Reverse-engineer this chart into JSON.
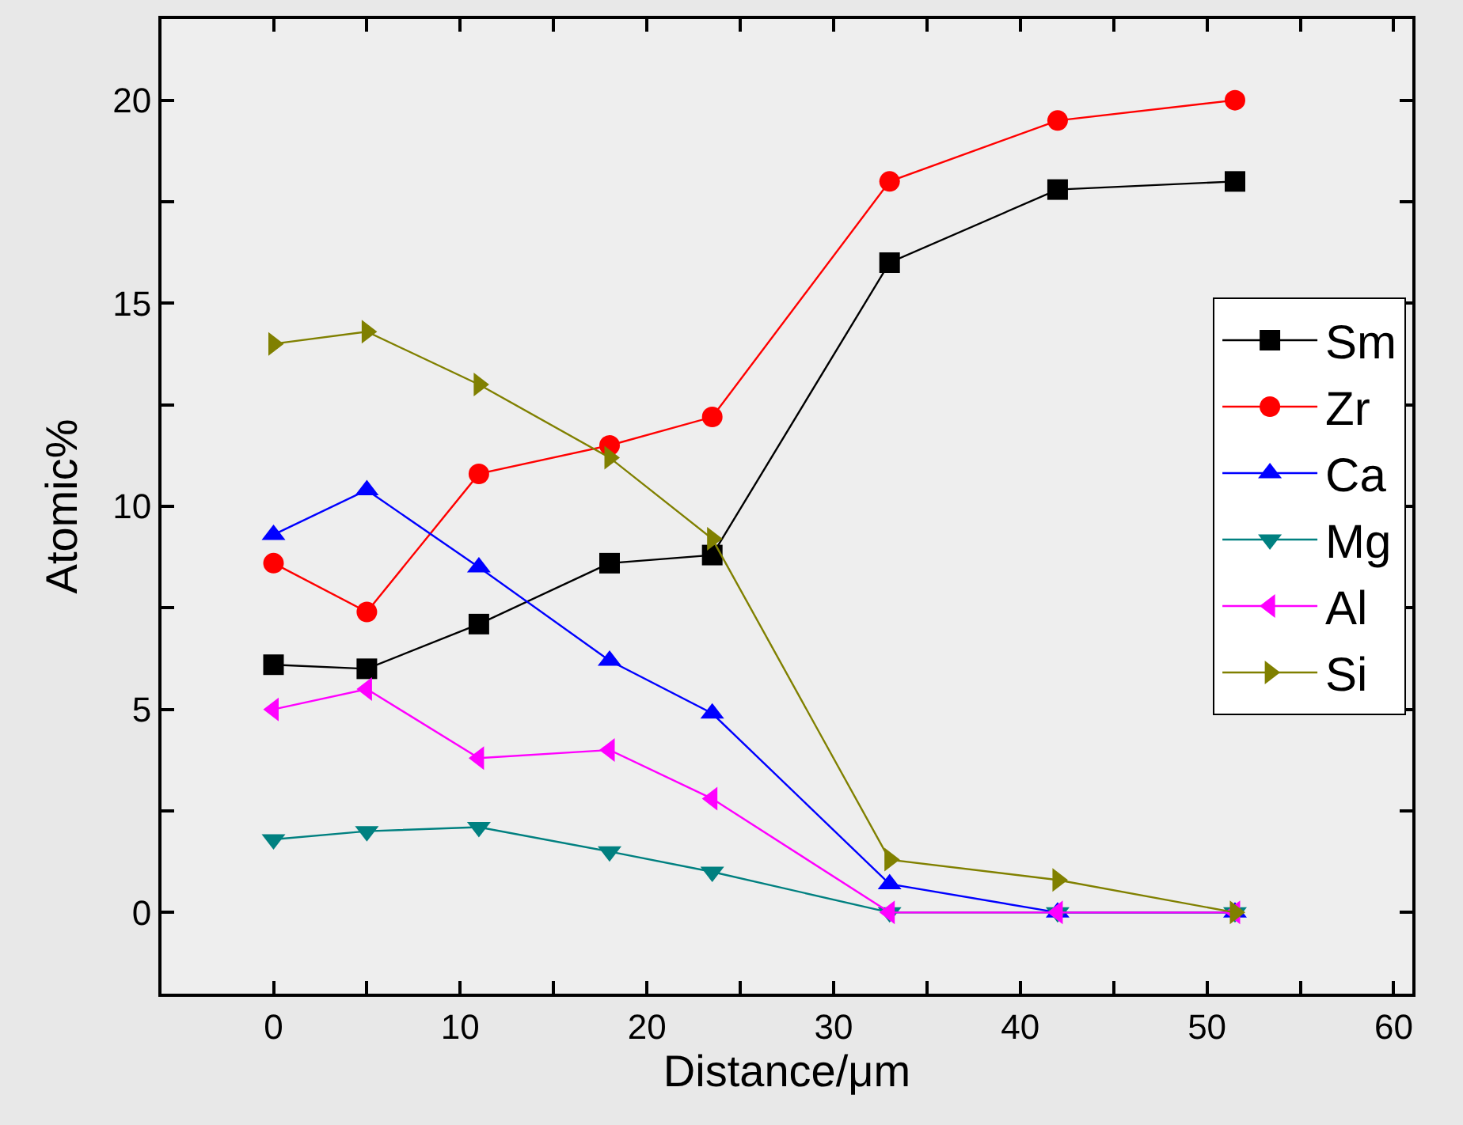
{
  "chart_data": {
    "type": "line",
    "xlabel": "Distance/μm",
    "ylabel": "Atomic%",
    "x": [
      0,
      5,
      11,
      18,
      23.5,
      33,
      42,
      51.5
    ],
    "series": [
      {
        "name": "Sm",
        "color": "#000000",
        "marker": "square",
        "values": [
          6.1,
          6.0,
          7.1,
          8.6,
          8.8,
          16.0,
          17.8,
          18.0
        ]
      },
      {
        "name": "Zr",
        "color": "#ff0000",
        "marker": "circle",
        "values": [
          8.6,
          7.4,
          10.8,
          11.5,
          12.2,
          18.0,
          19.5,
          20.0
        ]
      },
      {
        "name": "Ca",
        "color": "#0000ff",
        "marker": "triangle-up",
        "values": [
          9.3,
          10.4,
          8.5,
          6.2,
          4.9,
          0.7,
          0,
          0
        ]
      },
      {
        "name": "Mg",
        "color": "#008080",
        "marker": "triangle-down",
        "values": [
          1.8,
          2.0,
          2.1,
          1.5,
          1.0,
          0,
          0,
          0
        ]
      },
      {
        "name": "Al",
        "color": "#ff00ff",
        "marker": "triangle-left",
        "values": [
          5.0,
          5.5,
          3.8,
          4.0,
          2.8,
          0,
          0,
          0
        ]
      },
      {
        "name": "Si",
        "color": "#808000",
        "marker": "triangle-right",
        "values": [
          14.0,
          14.3,
          13.0,
          11.2,
          9.2,
          1.3,
          0.8,
          0
        ]
      }
    ],
    "xlim": [
      -6,
      61
    ],
    "ylim": [
      -2,
      22
    ],
    "xticks": [
      0,
      {
        "value": 5,
        "label": null
      },
      10,
      {
        "value": 15,
        "label": null
      },
      20,
      {
        "value": 25,
        "label": null
      },
      30,
      {
        "value": 35,
        "label": null
      },
      40,
      {
        "value": 45,
        "label": null
      },
      50,
      {
        "value": 55,
        "label": null
      },
      60
    ],
    "yticks": [
      0,
      {
        "value": 2.5,
        "label": null
      },
      5,
      {
        "value": 7.5,
        "label": null
      },
      10,
      {
        "value": 12.5,
        "label": null
      },
      15,
      {
        "value": 17.5,
        "label": null
      },
      20
    ],
    "grid": false,
    "legend": "right",
    "line_style": "solid"
  }
}
